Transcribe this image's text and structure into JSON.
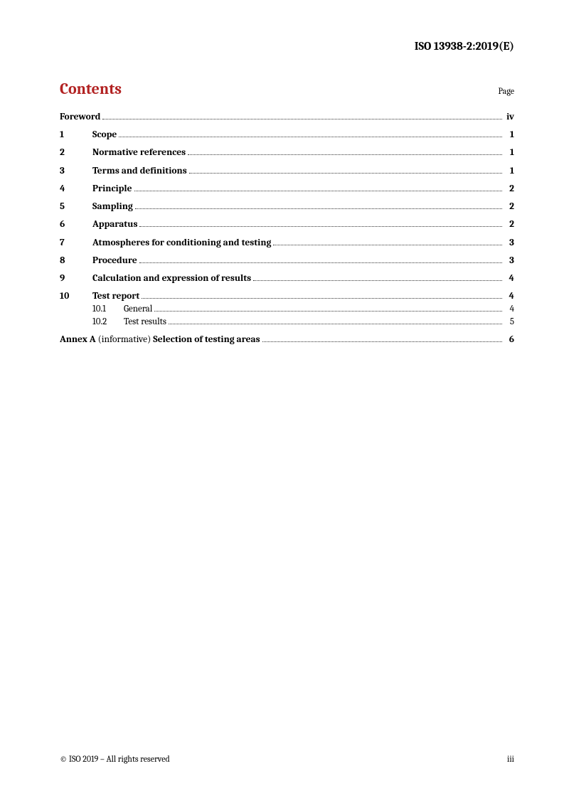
{
  "header": "ISO 13938-2:2019(E)",
  "contents_title": "Contents",
  "page_label": "Page",
  "accent_color": "#b22222",
  "toc": {
    "foreword": {
      "title": "Foreword",
      "page": "iv"
    },
    "items": [
      {
        "num": "1",
        "title": "Scope",
        "page": "1"
      },
      {
        "num": "2",
        "title": "Normative references",
        "page": "1"
      },
      {
        "num": "3",
        "title": "Terms and definitions",
        "page": "1"
      },
      {
        "num": "4",
        "title": "Principle",
        "page": "2"
      },
      {
        "num": "5",
        "title": "Sampling",
        "page": "2"
      },
      {
        "num": "6",
        "title": "Apparatus",
        "page": "2"
      },
      {
        "num": "7",
        "title": "Atmospheres for conditioning and testing",
        "page": "3"
      },
      {
        "num": "8",
        "title": "Procedure",
        "page": "3"
      },
      {
        "num": "9",
        "title": "Calculation and expression of results",
        "page": "4"
      },
      {
        "num": "10",
        "title": "Test report",
        "page": "4",
        "subs": [
          {
            "num": "10.1",
            "title": "General",
            "page": "4"
          },
          {
            "num": "10.2",
            "title": "Test results",
            "page": "5"
          }
        ]
      }
    ],
    "annex": {
      "label": "Annex A",
      "type": " (informative) ",
      "title": "Selection of testing areas",
      "page": "6"
    }
  },
  "footer": {
    "copyright": "© ISO 2019 – All rights reserved",
    "pagenum": "iii"
  }
}
